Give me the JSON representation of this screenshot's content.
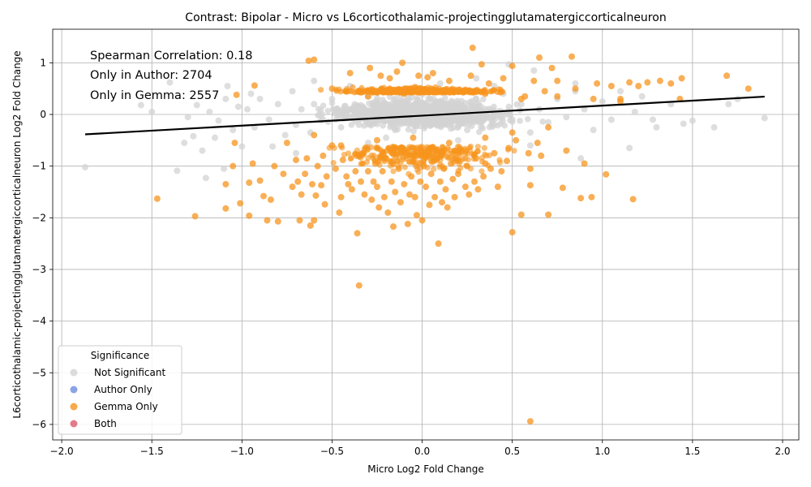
{
  "chart_data": {
    "type": "scatter",
    "title": "Contrast: Bipolar - Micro vs L6corticothalamic-projectingglutamatergiccorticalneuron",
    "xlabel": "Micro Log2 Fold Change",
    "ylabel": "L6corticothalamic-projectingglutamatergiccorticalneuron Log2 Fold Change",
    "xlim": [
      -2.05,
      2.09
    ],
    "ylim": [
      -6.3,
      1.65
    ],
    "xticks": [
      -2.0,
      -1.5,
      -1.0,
      -0.5,
      0.0,
      0.5,
      1.0,
      1.5,
      2.0
    ],
    "xtick_labels": [
      "−2.0",
      "−1.5",
      "−1.0",
      "−0.5",
      "0.0",
      "0.5",
      "1.0",
      "1.5",
      "2.0"
    ],
    "yticks": [
      -6,
      -5,
      -4,
      -3,
      -2,
      -1,
      0,
      1
    ],
    "ytick_labels": [
      "−6",
      "−5",
      "−4",
      "−3",
      "−2",
      "−1",
      "0",
      "1"
    ],
    "grid": true,
    "annotations": [
      "Spearman Correlation: 0.18",
      "Only in Author: 2704",
      "Only in Gemma: 2557"
    ],
    "regression_line": {
      "x": [
        -1.87,
        1.9
      ],
      "y": [
        -0.385,
        0.345
      ],
      "color": "#000000"
    },
    "legend": {
      "title": "Significance",
      "placement": "lower-left",
      "entries": [
        {
          "name": "Not Significant",
          "color": "#d3d3d3"
        },
        {
          "name": "Author Only",
          "color": "#6f8ddf"
        },
        {
          "name": "Gemma Only",
          "color": "#f7941d"
        },
        {
          "name": "Both",
          "color": "#dc5a6e"
        }
      ]
    },
    "series": [
      {
        "name": "Not Significant",
        "color": "#d3d3d3",
        "points": [
          [
            -1.87,
            -1.02
          ],
          [
            -1.56,
            0.18
          ],
          [
            -1.5,
            0.05
          ],
          [
            -1.4,
            0.62
          ],
          [
            -1.36,
            -1.09
          ],
          [
            -1.32,
            -0.55
          ],
          [
            -1.3,
            -0.05
          ],
          [
            -1.27,
            -0.42
          ],
          [
            -1.25,
            0.18
          ],
          [
            -1.22,
            -0.7
          ],
          [
            -1.2,
            -1.23
          ],
          [
            -1.18,
            0.05
          ],
          [
            -1.15,
            -0.45
          ],
          [
            -1.13,
            -0.12
          ],
          [
            -1.1,
            -1.05
          ],
          [
            -1.09,
            0.3
          ],
          [
            -1.05,
            -0.3
          ],
          [
            -1.02,
            0.15
          ],
          [
            -1.0,
            -0.62
          ],
          [
            -0.97,
            0.1
          ],
          [
            -0.93,
            -0.25
          ],
          [
            -0.9,
            0.3
          ],
          [
            -0.85,
            -0.1
          ],
          [
            -0.83,
            -0.62
          ],
          [
            -0.8,
            0.2
          ],
          [
            -0.76,
            -0.4
          ],
          [
            -0.72,
            0.45
          ],
          [
            -0.7,
            -0.2
          ],
          [
            -0.67,
            0.1
          ],
          [
            -0.62,
            -0.35
          ],
          [
            -0.6,
            0.2
          ],
          [
            -0.55,
            -0.1
          ],
          [
            -0.5,
            0.3
          ],
          [
            -0.45,
            -0.25
          ],
          [
            -0.4,
            0.1
          ],
          [
            -0.35,
            -0.2
          ],
          [
            -0.3,
            0.35
          ],
          [
            -0.25,
            -0.05
          ],
          [
            -0.2,
            0.2
          ],
          [
            -0.15,
            -0.3
          ],
          [
            -0.1,
            0.05
          ],
          [
            -0.05,
            -0.15
          ],
          [
            0.0,
            0.1
          ],
          [
            0.05,
            -0.2
          ],
          [
            0.1,
            0.25
          ],
          [
            0.15,
            -0.1
          ],
          [
            0.2,
            0.15
          ],
          [
            0.25,
            -0.3
          ],
          [
            0.3,
            0.3
          ],
          [
            0.35,
            0.05
          ],
          [
            0.4,
            -0.2
          ],
          [
            0.45,
            0.4
          ],
          [
            0.48,
            0.97
          ],
          [
            0.5,
            -0.1
          ],
          [
            0.55,
            0.2
          ],
          [
            0.6,
            -0.35
          ],
          [
            0.62,
            0.85
          ],
          [
            0.65,
            0.1
          ],
          [
            0.7,
            -0.15
          ],
          [
            0.75,
            0.3
          ],
          [
            0.8,
            -0.05
          ],
          [
            0.85,
            0.45
          ],
          [
            0.88,
            -0.85
          ],
          [
            0.9,
            0.1
          ],
          [
            0.95,
            -0.3
          ],
          [
            1.0,
            0.25
          ],
          [
            1.05,
            -0.1
          ],
          [
            1.1,
            0.45
          ],
          [
            1.15,
            -0.65
          ],
          [
            1.18,
            0.05
          ],
          [
            1.22,
            0.35
          ],
          [
            1.28,
            -0.1
          ],
          [
            1.3,
            -0.25
          ],
          [
            1.38,
            0.2
          ],
          [
            1.45,
            -0.18
          ],
          [
            1.5,
            -0.12
          ],
          [
            1.62,
            -0.25
          ],
          [
            1.7,
            0.2
          ],
          [
            1.75,
            0.3
          ],
          [
            1.9,
            -0.07
          ],
          [
            -0.95,
            0.4
          ],
          [
            -0.6,
            0.65
          ],
          [
            -0.4,
            0.55
          ],
          [
            0.1,
            0.6
          ],
          [
            0.3,
            0.7
          ],
          [
            -0.2,
            -0.45
          ],
          [
            0.2,
            -0.5
          ],
          [
            0.6,
            -0.6
          ],
          [
            -0.7,
            -0.75
          ],
          [
            0.85,
            0.6
          ],
          [
            -1.08,
            0.55
          ],
          [
            -0.3,
            -0.55
          ],
          [
            0.4,
            0.55
          ]
        ]
      },
      {
        "name": "Gemma Only",
        "color": "#f7941d",
        "points": [
          [
            -1.47,
            -1.63
          ],
          [
            -1.26,
            -1.97
          ],
          [
            -1.09,
            -1.35
          ],
          [
            -1.09,
            -1.82
          ],
          [
            -1.05,
            -1.0
          ],
          [
            -1.04,
            -0.55
          ],
          [
            -1.03,
            0.38
          ],
          [
            -1.01,
            -1.72
          ],
          [
            -0.96,
            -1.32
          ],
          [
            -0.96,
            -1.96
          ],
          [
            -0.94,
            -0.95
          ],
          [
            -0.93,
            0.56
          ],
          [
            -0.9,
            -1.28
          ],
          [
            -0.88,
            -1.58
          ],
          [
            -0.86,
            -2.05
          ],
          [
            -0.84,
            -1.65
          ],
          [
            -0.82,
            -1.0
          ],
          [
            -0.8,
            -2.07
          ],
          [
            -0.77,
            -1.15
          ],
          [
            -0.75,
            -0.55
          ],
          [
            -0.72,
            -1.4
          ],
          [
            -0.7,
            -0.88
          ],
          [
            -0.69,
            -1.3
          ],
          [
            -0.68,
            -2.05
          ],
          [
            -0.67,
            -1.55
          ],
          [
            -0.65,
            -1.15
          ],
          [
            -0.64,
            -0.85
          ],
          [
            -0.63,
            1.04
          ],
          [
            -0.62,
            -2.15
          ],
          [
            -0.61,
            -1.35
          ],
          [
            -0.6,
            -2.05
          ],
          [
            -0.6,
            1.06
          ],
          [
            -0.59,
            -1.57
          ],
          [
            -0.58,
            -1.0
          ],
          [
            -0.56,
            -1.37
          ],
          [
            -0.55,
            -0.8
          ],
          [
            -0.54,
            -1.74
          ],
          [
            -0.53,
            -1.2
          ],
          [
            -0.5,
            -0.6
          ],
          [
            -0.48,
            -1.05
          ],
          [
            -0.46,
            -1.9
          ],
          [
            -0.45,
            -1.6
          ],
          [
            -0.44,
            -0.88
          ],
          [
            -0.42,
            -1.2
          ],
          [
            -0.41,
            -1.35
          ],
          [
            -0.4,
            0.8
          ],
          [
            -0.39,
            -1.45
          ],
          [
            -0.37,
            -1.1
          ],
          [
            -0.36,
            -2.3
          ],
          [
            -0.35,
            -3.31
          ],
          [
            -0.34,
            -1.3
          ],
          [
            -0.33,
            -0.75
          ],
          [
            -0.32,
            -1.55
          ],
          [
            -0.3,
            -1.1
          ],
          [
            -0.29,
            0.9
          ],
          [
            -0.28,
            -1.65
          ],
          [
            -0.27,
            -1.3
          ],
          [
            -0.26,
            -0.95
          ],
          [
            -0.25,
            -1.4
          ],
          [
            -0.24,
            -1.8
          ],
          [
            -0.23,
            0.75
          ],
          [
            -0.22,
            -1.1
          ],
          [
            -0.21,
            -1.6
          ],
          [
            -0.2,
            -0.85
          ],
          [
            -0.19,
            -1.9
          ],
          [
            -0.18,
            0.7
          ],
          [
            -0.17,
            -1.3
          ],
          [
            -0.16,
            -2.17
          ],
          [
            -0.15,
            -1.5
          ],
          [
            -0.14,
            0.83
          ],
          [
            -0.13,
            -1.05
          ],
          [
            -0.12,
            -1.7
          ],
          [
            -0.11,
            1.0
          ],
          [
            -0.1,
            -1.35
          ],
          [
            -0.09,
            -0.8
          ],
          [
            -0.08,
            -2.12
          ],
          [
            -0.07,
            -1.55
          ],
          [
            -0.06,
            -1.2
          ],
          [
            -0.05,
            -0.9
          ],
          [
            -0.04,
            -1.6
          ],
          [
            -0.03,
            -1.95
          ],
          [
            -0.02,
            0.75
          ],
          [
            -0.01,
            -1.3
          ],
          [
            0.0,
            -2.05
          ],
          [
            0.01,
            -1.0
          ],
          [
            0.02,
            -1.4
          ],
          [
            0.03,
            0.72
          ],
          [
            0.04,
            -1.75
          ],
          [
            0.05,
            -1.15
          ],
          [
            0.06,
            0.8
          ],
          [
            0.07,
            -1.6
          ],
          [
            0.08,
            -0.85
          ],
          [
            0.09,
            -2.5
          ],
          [
            0.1,
            -1.3
          ],
          [
            0.11,
            -1.7
          ],
          [
            0.12,
            -1.05
          ],
          [
            0.13,
            -1.45
          ],
          [
            0.14,
            -1.8
          ],
          [
            0.15,
            0.65
          ],
          [
            0.16,
            -0.95
          ],
          [
            0.17,
            -1.25
          ],
          [
            0.18,
            -1.6
          ],
          [
            0.2,
            -1.15
          ],
          [
            0.22,
            -0.7
          ],
          [
            0.24,
            -1.4
          ],
          [
            0.25,
            -1.0
          ],
          [
            0.26,
            -1.55
          ],
          [
            0.27,
            0.75
          ],
          [
            0.28,
            1.29
          ],
          [
            0.29,
            -1.3
          ],
          [
            0.3,
            -0.85
          ],
          [
            0.31,
            -1.45
          ],
          [
            0.33,
            0.97
          ],
          [
            0.34,
            -1.2
          ],
          [
            0.35,
            -0.95
          ],
          [
            0.37,
            0.6
          ],
          [
            0.38,
            -1.05
          ],
          [
            0.4,
            -0.75
          ],
          [
            0.42,
            -1.4
          ],
          [
            0.44,
            -1.1
          ],
          [
            0.45,
            0.7
          ],
          [
            0.47,
            -0.9
          ],
          [
            0.48,
            -0.65
          ],
          [
            0.5,
            -2.28
          ],
          [
            0.5,
            0.94
          ],
          [
            0.52,
            -0.5
          ],
          [
            0.55,
            -1.94
          ],
          [
            0.57,
            0.35
          ],
          [
            0.59,
            -0.75
          ],
          [
            0.6,
            -1.37
          ],
          [
            0.6,
            -5.94
          ],
          [
            0.6,
            -1.05
          ],
          [
            0.62,
            0.65
          ],
          [
            0.64,
            -0.55
          ],
          [
            0.65,
            1.1
          ],
          [
            0.66,
            -0.8
          ],
          [
            0.68,
            0.45
          ],
          [
            0.7,
            -1.94
          ],
          [
            0.72,
            0.9
          ],
          [
            0.75,
            0.65
          ],
          [
            0.78,
            -1.42
          ],
          [
            0.8,
            -0.7
          ],
          [
            0.83,
            1.12
          ],
          [
            0.85,
            0.5
          ],
          [
            0.88,
            -1.62
          ],
          [
            0.9,
            -0.95
          ],
          [
            0.94,
            -1.6
          ],
          [
            0.97,
            0.6
          ],
          [
            1.02,
            -1.16
          ],
          [
            1.05,
            0.55
          ],
          [
            1.1,
            0.3
          ],
          [
            1.15,
            0.62
          ],
          [
            1.17,
            -1.64
          ],
          [
            1.2,
            0.55
          ],
          [
            1.25,
            0.62
          ],
          [
            1.32,
            0.65
          ],
          [
            1.38,
            0.6
          ],
          [
            1.43,
            0.3
          ],
          [
            1.44,
            0.7
          ],
          [
            1.69,
            0.75
          ],
          [
            1.81,
            0.5
          ],
          [
            -0.5,
            0.5
          ],
          [
            -0.3,
            0.35
          ],
          [
            -0.1,
            0.4
          ],
          [
            0.05,
            0.5
          ],
          [
            0.2,
            0.45
          ],
          [
            0.35,
            0.4
          ],
          [
            0.55,
            0.3
          ],
          [
            0.75,
            0.35
          ],
          [
            0.95,
            0.3
          ],
          [
            1.1,
            0.25
          ],
          [
            -0.6,
            -0.4
          ],
          [
            -0.45,
            -0.6
          ],
          [
            -0.25,
            -0.5
          ],
          [
            -0.05,
            -0.45
          ],
          [
            0.15,
            -0.55
          ],
          [
            0.35,
            -0.45
          ],
          [
            0.5,
            -0.35
          ],
          [
            0.7,
            -0.25
          ]
        ]
      },
      {
        "name": "Author Only",
        "color": "#6f8ddf",
        "points": []
      },
      {
        "name": "Both",
        "color": "#dc5a6e",
        "points": []
      }
    ]
  }
}
